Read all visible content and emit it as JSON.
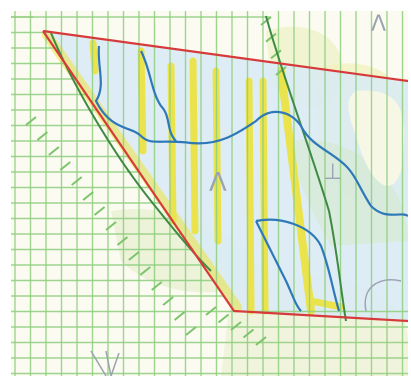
{
  "map": {
    "colors": {
      "paper": "#fbfbf2",
      "grid": "#8fce7e",
      "water_fill": "#cfe6f5",
      "green_fill": "#e7f0cf",
      "yellow_fill": "#eef2b8",
      "boundary": "#d63a3a",
      "highlight": "#ece33a",
      "stream": "#2f78b8",
      "forest_line": "#3f8a43",
      "hatch": "#7cc46c",
      "symbol": "#9aa3b2"
    },
    "symbols": {
      "shelter": "Λ",
      "marker": "⊥"
    },
    "features": [
      "parcel-boundary",
      "stream",
      "forest-edge",
      "survey-grid",
      "yellow-strips"
    ]
  }
}
